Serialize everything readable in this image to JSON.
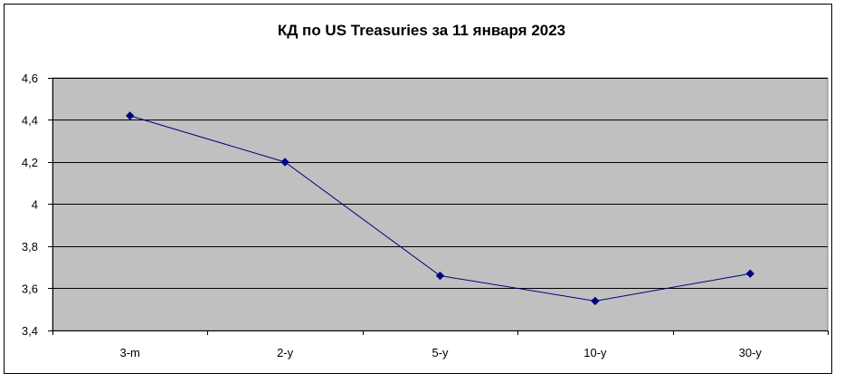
{
  "chart_data": {
    "type": "line",
    "title": "КД по US Treasuries за 11 января 2023",
    "categories": [
      "3-m",
      "2-y",
      "5-y",
      "10-y",
      "30-y"
    ],
    "series": [
      {
        "values": [
          4.42,
          4.2,
          3.66,
          3.54,
          3.67
        ],
        "color": "#000080"
      }
    ],
    "ylim": [
      3.4,
      4.6
    ],
    "yticks": [
      3.4,
      3.6,
      3.8,
      4.0,
      4.2,
      4.4,
      4.6
    ],
    "ytick_labels": [
      "3,4",
      "3,6",
      "3,8",
      "4",
      "4,2",
      "4,4",
      "4,6"
    ],
    "plot_background": "#c0c0c0",
    "grid": true,
    "legend": "none"
  }
}
